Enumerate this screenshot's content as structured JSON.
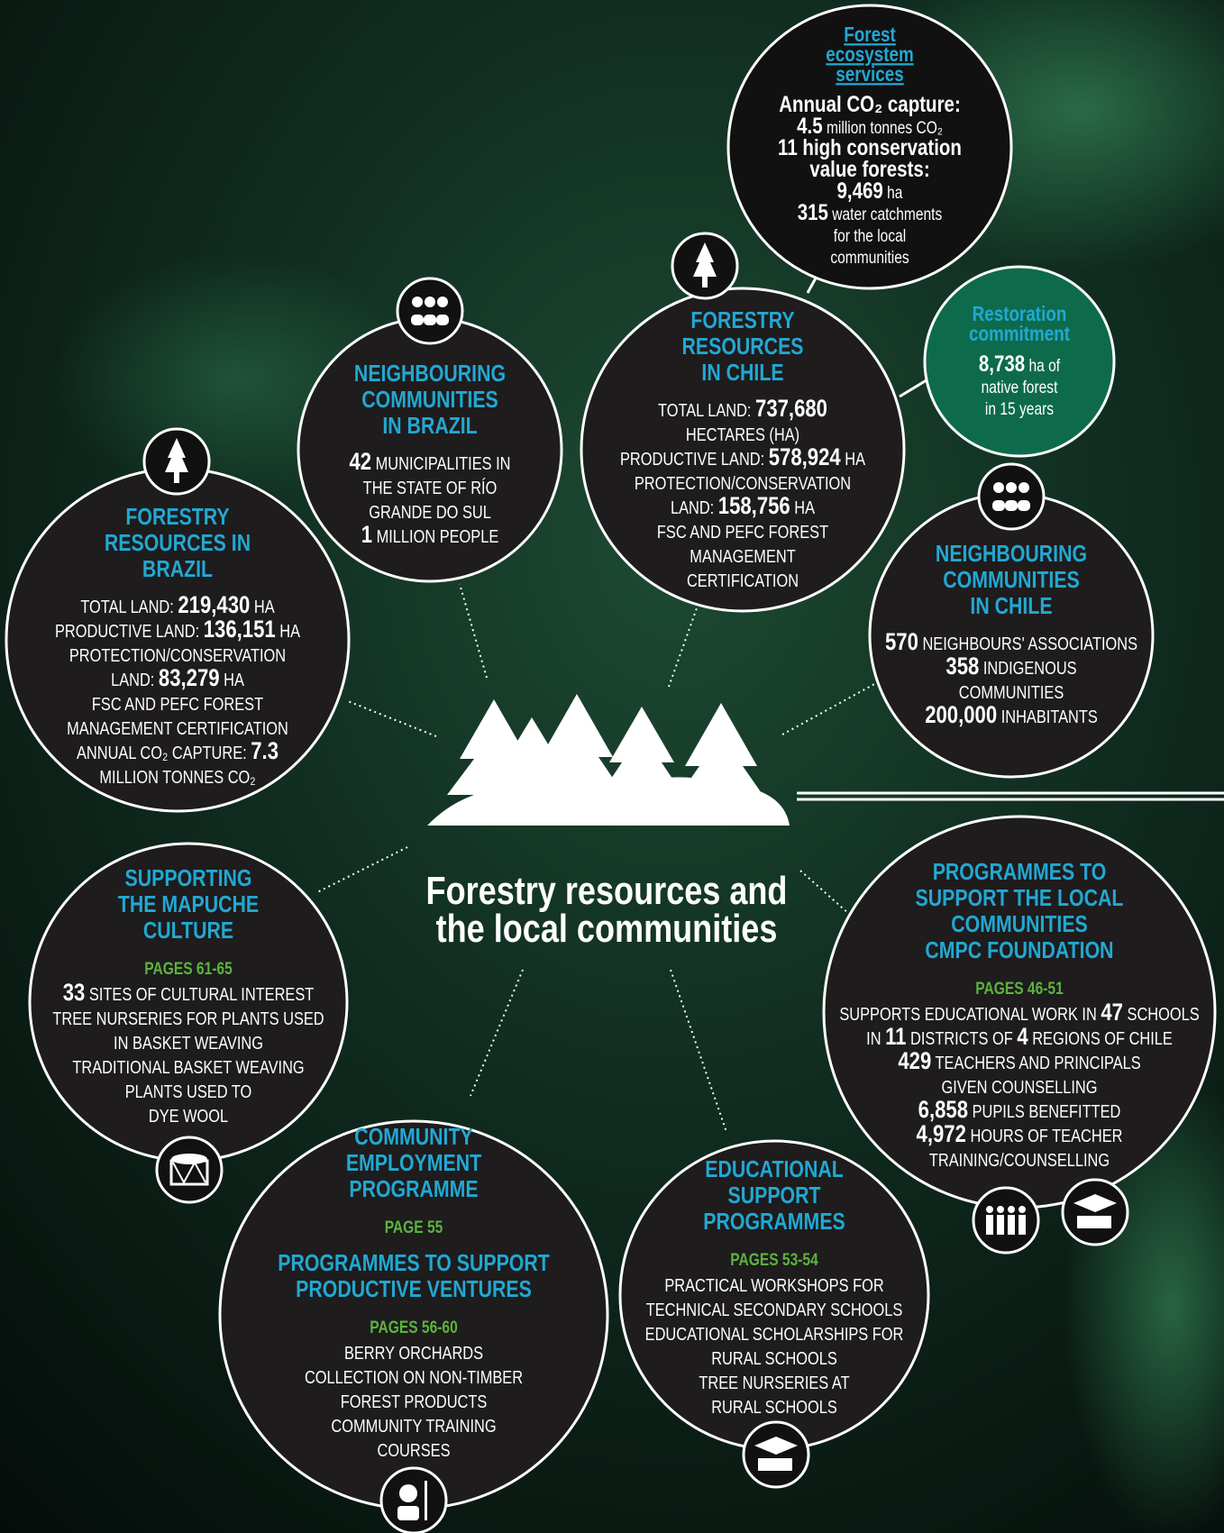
{
  "infographic": {
    "title": [
      "Forestry resources and",
      "the local communities"
    ],
    "circles": [
      {
        "sections": [
          {
            "title": [
              "Forest",
              "ecosystem",
              "services"
            ],
            "lines": [
              [
                {
                  "strong": "Annual CO₂ capture:"
                }
              ],
              [
                {
                  "strong": "4.5"
                },
                {
                  "text": " million tonnes CO₂"
                }
              ],
              [
                {
                  "strong": "11 high conservation"
                }
              ],
              [
                {
                  "strong": "value forests:"
                }
              ],
              [
                {
                  "strong": "9,469"
                },
                {
                  "text": " ha"
                }
              ],
              [
                {
                  "strong": "315"
                },
                {
                  "text": " water catchments"
                }
              ],
              [
                {
                  "text": "for the local"
                }
              ],
              [
                {
                  "text": "communities"
                }
              ]
            ]
          }
        ]
      },
      {
        "sections": [
          {
            "title": [
              "Restoration",
              "commitment"
            ],
            "lines": [
              [
                {
                  "strong": "8,738"
                },
                {
                  "text": " ha of"
                }
              ],
              [
                {
                  "text": "native forest"
                }
              ],
              [
                {
                  "text": "in 15 years"
                }
              ]
            ]
          }
        ]
      },
      {
        "sections": [
          {
            "title": [
              "FORESTRY",
              "RESOURCES",
              "IN CHILE"
            ],
            "lines": [
              [
                {
                  "text": "TOTAL LAND: "
                },
                {
                  "strong": "737,680"
                }
              ],
              [
                {
                  "text": "HECTARES (HA)"
                }
              ],
              [
                {
                  "text": "PRODUCTIVE LAND: "
                },
                {
                  "strong": "578,924"
                },
                {
                  "text": " HA"
                }
              ],
              [
                {
                  "text": "PROTECTION/CONSERVATION"
                }
              ],
              [
                {
                  "text": "LAND: "
                },
                {
                  "strong": "158,756"
                },
                {
                  "text": " HA"
                }
              ],
              [
                {
                  "text": "FSC AND PEFC FOREST"
                }
              ],
              [
                {
                  "text": "MANAGEMENT"
                }
              ],
              [
                {
                  "text": "CERTIFICATION"
                }
              ]
            ]
          }
        ]
      },
      {
        "sections": [
          {
            "title": [
              "NEIGHBOURING",
              "COMMUNITIES",
              "IN BRAZIL"
            ],
            "lines": [
              [
                {
                  "strong": "42"
                },
                {
                  "text": " MUNICIPALITIES IN"
                }
              ],
              [
                {
                  "text": "THE STATE OF RÍO"
                }
              ],
              [
                {
                  "text": "GRANDE DO SUL"
                }
              ],
              [
                {
                  "strong": "1"
                },
                {
                  "text": " MILLION PEOPLE"
                }
              ]
            ]
          }
        ]
      },
      {
        "sections": [
          {
            "title": [
              "FORESTRY",
              "RESOURCES IN",
              "BRAZIL"
            ],
            "lines": [
              [
                {
                  "text": "TOTAL LAND: "
                },
                {
                  "strong": "219,430"
                },
                {
                  "text": " HA"
                }
              ],
              [
                {
                  "text": "PRODUCTIVE LAND: "
                },
                {
                  "strong": "136,151"
                },
                {
                  "text": " HA"
                }
              ],
              [
                {
                  "text": "PROTECTION/CONSERVATION"
                }
              ],
              [
                {
                  "text": "LAND: "
                },
                {
                  "strong": "83,279"
                },
                {
                  "text": " HA"
                }
              ],
              [
                {
                  "text": "FSC AND PEFC FOREST"
                }
              ],
              [
                {
                  "text": "MANAGEMENT CERTIFICATION"
                }
              ],
              [
                {
                  "text": "ANNUAL CO₂ CAPTURE: "
                },
                {
                  "strong": "7.3"
                }
              ],
              [
                {
                  "text": "MILLION TONNES CO₂"
                }
              ]
            ]
          }
        ]
      },
      {
        "sections": [
          {
            "title": [
              "NEIGHBOURING",
              "COMMUNITIES",
              "IN CHILE"
            ],
            "lines": [
              [
                {
                  "strong": "570"
                },
                {
                  "text": " NEIGHBOURS' ASSOCIATIONS"
                }
              ],
              [
                {
                  "strong": "358"
                },
                {
                  "text": " INDIGENOUS"
                }
              ],
              [
                {
                  "text": "COMMUNITIES"
                }
              ],
              [
                {
                  "strong": "200,000"
                },
                {
                  "text": " INHABITANTS"
                }
              ]
            ]
          }
        ]
      },
      {
        "sections": [
          {
            "title": [
              "SUPPORTING",
              "THE MAPUCHE",
              "CULTURE"
            ],
            "pages": "PAGES 61-65",
            "lines": [
              [
                {
                  "strong": "33"
                },
                {
                  "text": " SITES OF CULTURAL INTEREST"
                }
              ],
              [
                {
                  "text": "TREE NURSERIES FOR PLANTS USED"
                }
              ],
              [
                {
                  "text": "IN BASKET WEAVING"
                }
              ],
              [
                {
                  "text": "TRADITIONAL BASKET WEAVING"
                }
              ],
              [
                {
                  "text": "PLANTS USED TO"
                }
              ],
              [
                {
                  "text": "DYE WOOL"
                }
              ]
            ]
          }
        ]
      },
      {
        "sections": [
          {
            "title": [
              "PROGRAMMES TO",
              "SUPPORT THE LOCAL",
              "COMMUNITIES",
              "CMPC FOUNDATION"
            ],
            "pages": "PAGES 46-51",
            "lines": [
              [
                {
                  "text": "SUPPORTS EDUCATIONAL WORK IN "
                },
                {
                  "strong": "47"
                },
                {
                  "text": " SCHOOLS"
                }
              ],
              [
                {
                  "text": "IN "
                },
                {
                  "strong": "11"
                },
                {
                  "text": " DISTRICTS OF "
                },
                {
                  "strong": "4"
                },
                {
                  "text": " REGIONS OF CHILE"
                }
              ],
              [
                {
                  "strong": "429"
                },
                {
                  "text": " TEACHERS AND PRINCIPALS"
                }
              ],
              [
                {
                  "text": "GIVEN COUNSELLING"
                }
              ],
              [
                {
                  "strong": "6,858"
                },
                {
                  "text": " PUPILS BENEFITTED"
                }
              ],
              [
                {
                  "strong": "4,972"
                },
                {
                  "text": " HOURS OF TEACHER"
                }
              ],
              [
                {
                  "text": "TRAINING/COUNSELLING"
                }
              ]
            ]
          }
        ]
      },
      {
        "sections": [
          {
            "title": [
              "COMMUNITY",
              "EMPLOYMENT",
              "PROGRAMME"
            ],
            "pages": "PAGE 55"
          },
          {
            "title": [
              "PROGRAMMES TO SUPPORT",
              "PRODUCTIVE VENTURES"
            ],
            "pages": "PAGES 56-60",
            "lines": [
              [
                {
                  "text": "BERRY ORCHARDS"
                }
              ],
              [
                {
                  "text": "COLLECTION ON NON-TIMBER"
                }
              ],
              [
                {
                  "text": "FOREST PRODUCTS"
                }
              ],
              [
                {
                  "text": "COMMUNITY TRAINING"
                }
              ],
              [
                {
                  "text": "COURSES"
                }
              ]
            ]
          }
        ]
      },
      {
        "sections": [
          {
            "title": [
              "EDUCATIONAL",
              "SUPPORT",
              "PROGRAMMES"
            ],
            "pages": "PAGES 53-54",
            "lines": [
              [
                {
                  "text": "PRACTICAL WORKSHOPS FOR"
                }
              ],
              [
                {
                  "text": "TECHNICAL SECONDARY SCHOOLS"
                }
              ],
              [
                {
                  "text": "EDUCATIONAL SCHOLARSHIPS FOR"
                }
              ],
              [
                {
                  "text": "RURAL SCHOOLS"
                }
              ],
              [
                {
                  "text": "TREE NURSERIES AT"
                }
              ],
              [
                {
                  "text": "RURAL SCHOOLS"
                }
              ]
            ]
          }
        ]
      }
    ]
  }
}
